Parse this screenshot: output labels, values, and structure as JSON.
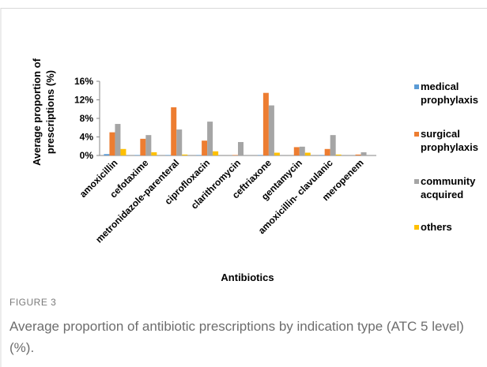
{
  "figure_label": "FIGURE 3",
  "caption": "Average proportion of antibiotic prescriptions by indication type (ATC 5 level) (%).",
  "chart_data": {
    "type": "bar",
    "xlabel": "Antibiotics",
    "ylabel": "Average proportion of prescriptions (%)",
    "categories": [
      "amoxicillin",
      "cefotaxime",
      "metronidazole-parenteral",
      "ciprofloxacin",
      "clarithromycin",
      "ceftriaxone",
      "gentamycin",
      "amoxicillin- clavulanic",
      "meropenem"
    ],
    "series": [
      {
        "name": "medical prophylaxis",
        "color": "#5b9bd5",
        "values": [
          0.3,
          0.1,
          0.1,
          0.1,
          0,
          0.1,
          0,
          0.1,
          0
        ]
      },
      {
        "name": "surgical prophylaxis",
        "color": "#ed7d31",
        "values": [
          5.0,
          3.6,
          10.4,
          3.2,
          0.1,
          13.5,
          1.8,
          1.4,
          0.2
        ]
      },
      {
        "name": "community acquired",
        "color": "#a5a5a5",
        "values": [
          6.8,
          4.4,
          5.6,
          7.3,
          2.9,
          10.8,
          1.9,
          4.4,
          0.7
        ]
      },
      {
        "name": "others",
        "color": "#ffc000",
        "values": [
          1.4,
          0.7,
          0.2,
          0.9,
          0,
          0.6,
          0.6,
          0.2,
          0
        ]
      }
    ],
    "ylim": [
      0,
      16
    ],
    "yticks": [
      {
        "value": 0,
        "label": "0%"
      },
      {
        "value": 4,
        "label": "4%"
      },
      {
        "value": 8,
        "label": "8%"
      },
      {
        "value": 12,
        "label": "12%"
      },
      {
        "value": 16,
        "label": "16%"
      }
    ],
    "legend": "right"
  }
}
